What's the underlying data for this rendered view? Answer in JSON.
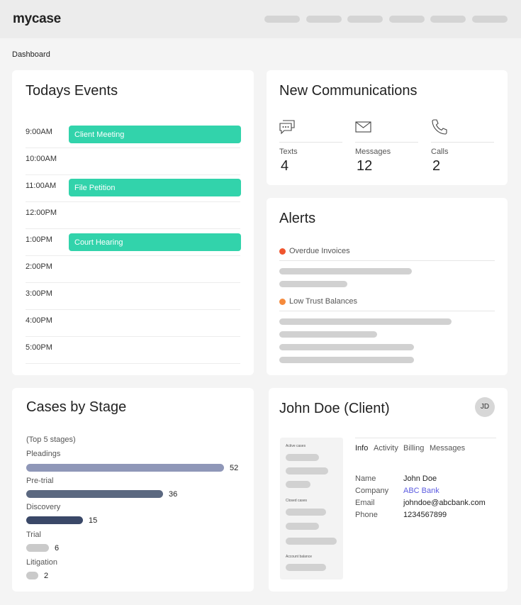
{
  "app": {
    "logo": "mycase"
  },
  "breadcrumb": "Dashboard",
  "events": {
    "title": "Todays Events",
    "times": [
      "9:00AM",
      "10:00AM",
      "11:00AM",
      "12:00PM",
      "1:00PM",
      "2:00PM",
      "3:00PM",
      "4:00PM",
      "5:00PM"
    ],
    "items": [
      {
        "label": "Client Meeting",
        "time": "9:00AM"
      },
      {
        "label": "File Petition",
        "time": "11:00AM"
      },
      {
        "label": "Court Hearing",
        "time": "1:00PM"
      }
    ],
    "accent": "#32d3ab"
  },
  "communications": {
    "title": "New Communications",
    "items": [
      {
        "label": "Texts",
        "count": "4",
        "icon": "chat-bubbles-icon"
      },
      {
        "label": "Messages",
        "count": "12",
        "icon": "envelope-icon"
      },
      {
        "label": "Calls",
        "count": "2",
        "icon": "phone-icon"
      }
    ]
  },
  "alerts": {
    "title": "Alerts",
    "items": [
      {
        "label": "Overdue Invoices",
        "color": "#f0552e"
      },
      {
        "label": "Low Trust Balances",
        "color": "#f58a3c"
      }
    ]
  },
  "cases": {
    "title": "Cases by Stage",
    "subtitle": "(Top 5 stages)",
    "stages": [
      {
        "label": "Pleadings",
        "value": 52,
        "display": "52",
        "color": "#8f97b8"
      },
      {
        "label": "Pre-trial",
        "value": 36,
        "display": "36",
        "color": "#5b6880"
      },
      {
        "label": "Discovery",
        "value": 15,
        "display": "15",
        "color": "#3a4868"
      },
      {
        "label": "Trial",
        "value": 6,
        "display": "6",
        "color": "#cacaca"
      },
      {
        "label": "Litigation",
        "value": 2,
        "display": "2",
        "color": "#cacaca"
      }
    ]
  },
  "client": {
    "title": "John Doe (Client)",
    "initials": "JD",
    "side": {
      "active_cases": "Active cases",
      "closed_cases": "Closed cases",
      "account_balance": "Account balance"
    },
    "tabs": [
      "Info",
      "Activity",
      "Billing",
      "Messages"
    ],
    "info": [
      {
        "key": "Name",
        "value": "John Doe"
      },
      {
        "key": "Company",
        "value": "ABC Bank"
      },
      {
        "key": "Email",
        "value": "johndoe@abcbank.com"
      },
      {
        "key": "Phone",
        "value": "1234567899"
      }
    ]
  }
}
